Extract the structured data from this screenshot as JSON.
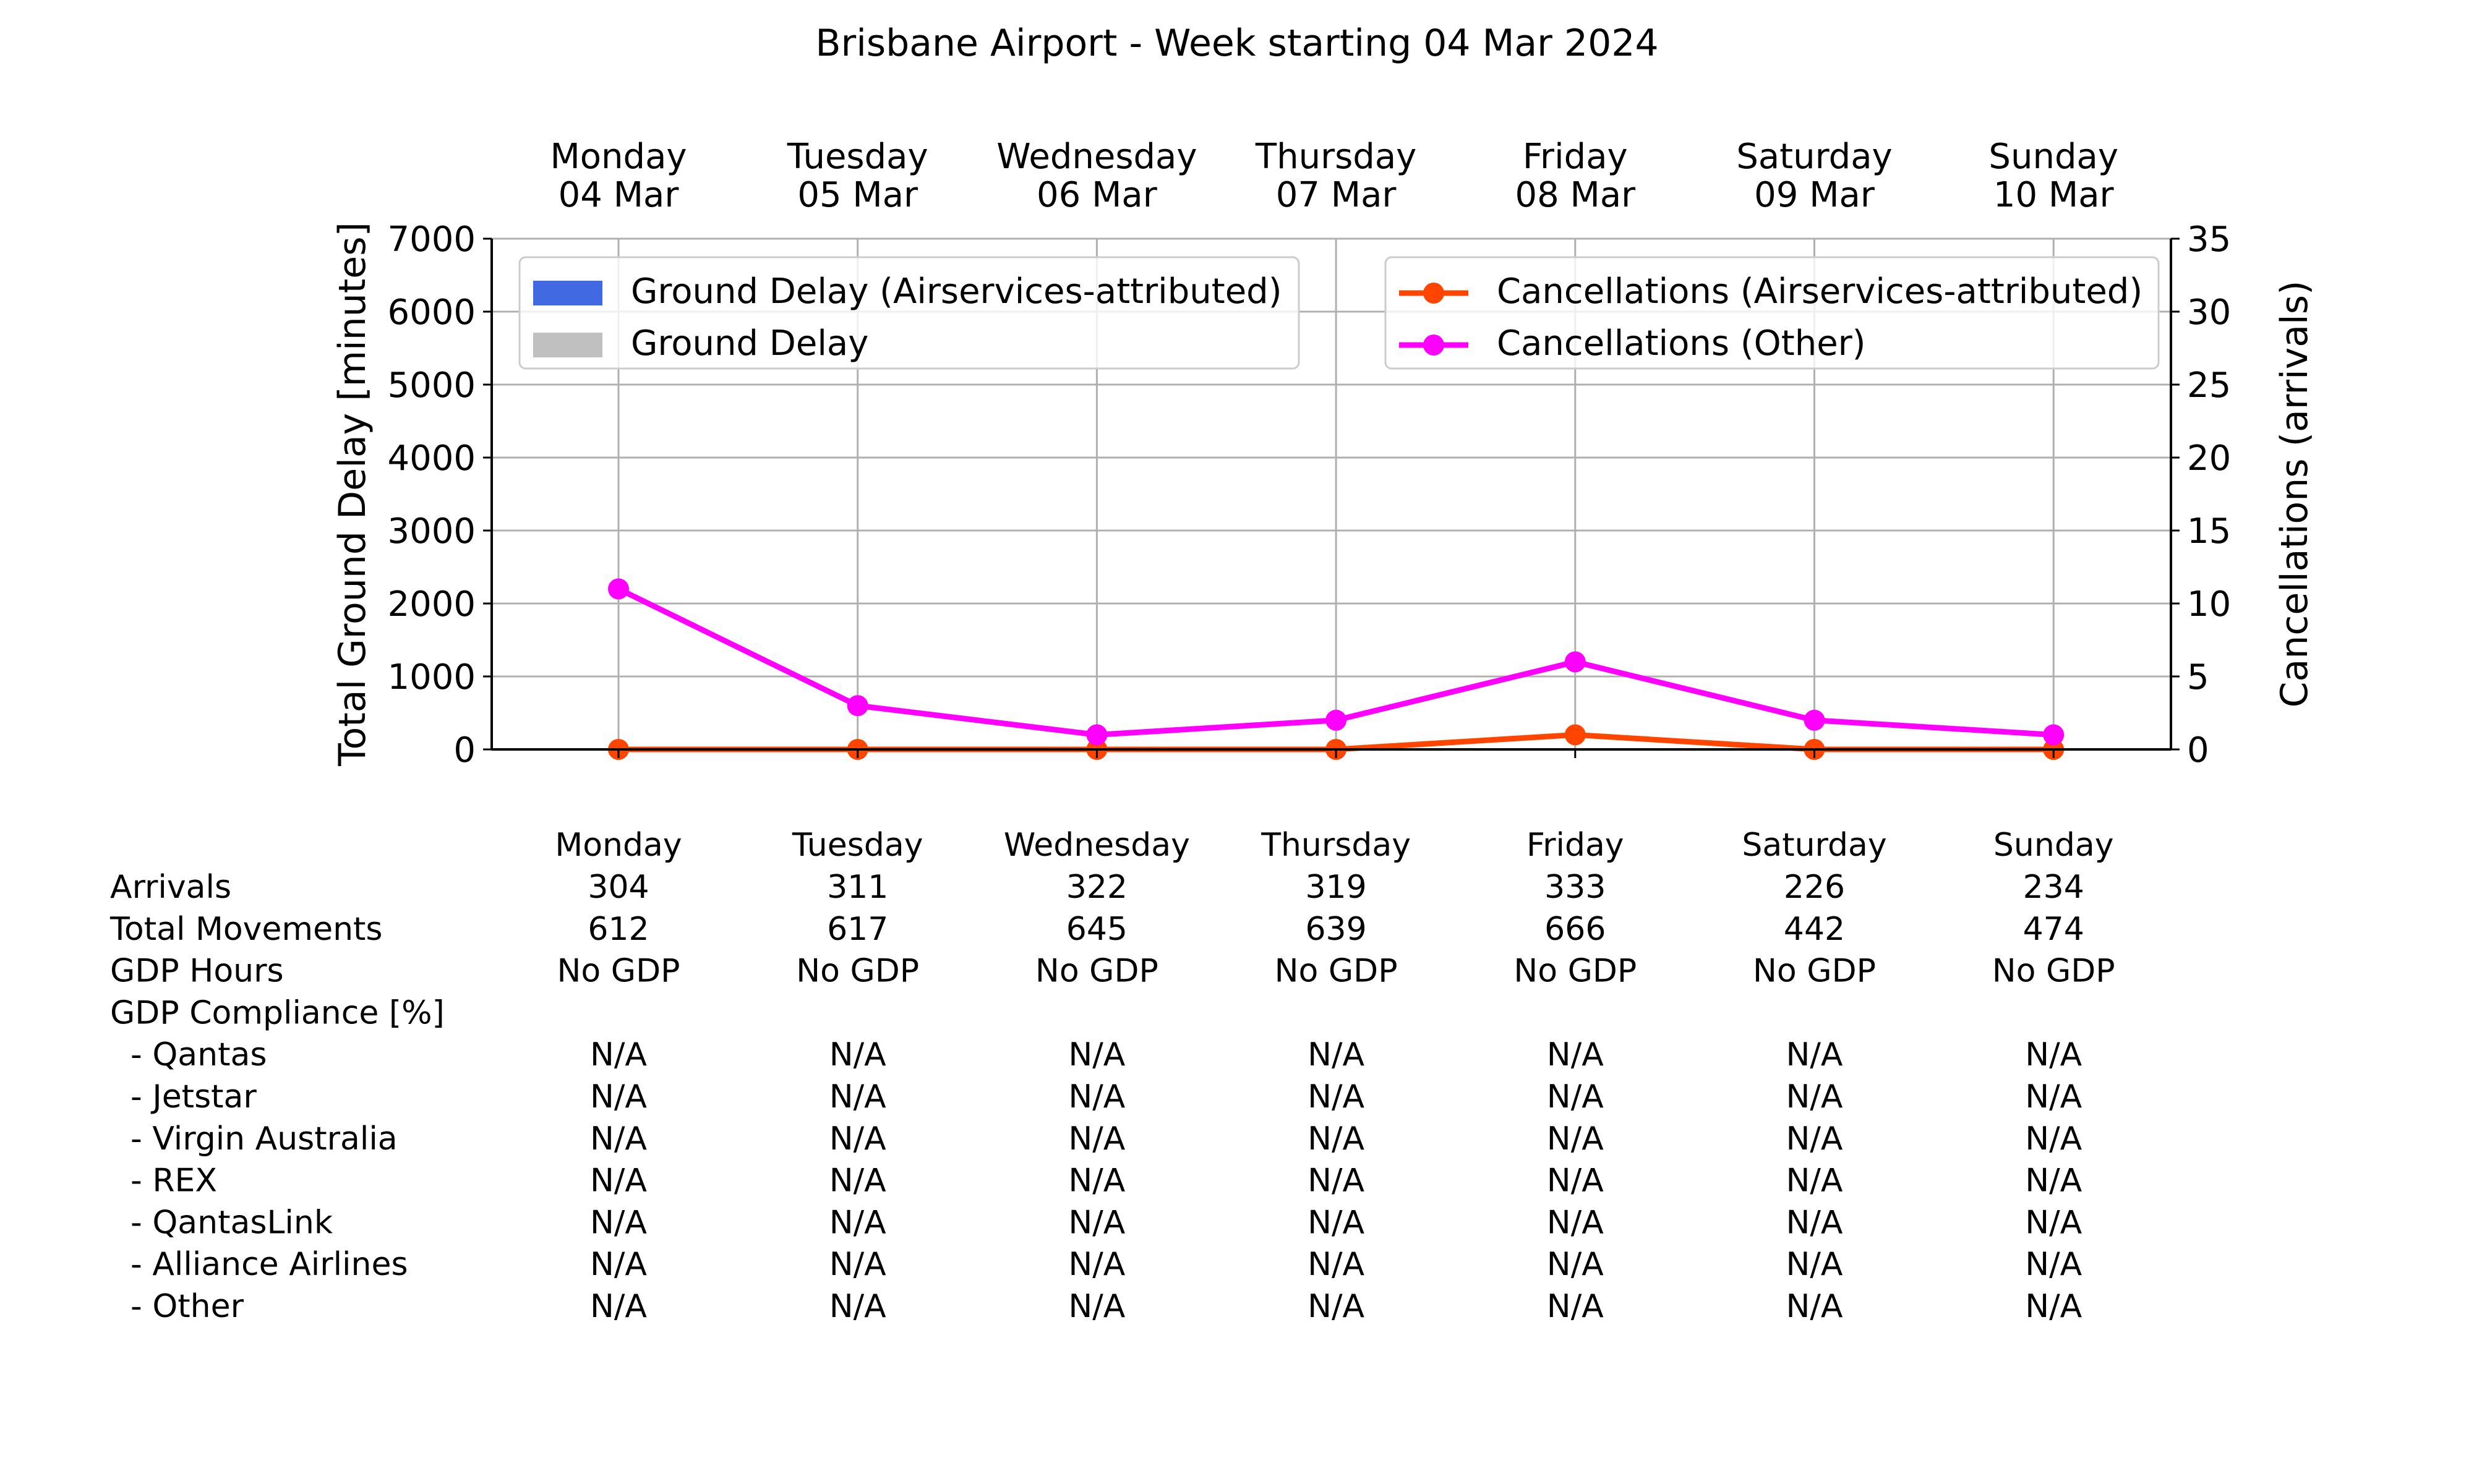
{
  "chart_data": {
    "type": "bar",
    "title": "Brisbane Airport - Week starting 04 Mar 2024",
    "day_names": [
      "Monday",
      "Tuesday",
      "Wednesday",
      "Thursday",
      "Friday",
      "Saturday",
      "Sunday"
    ],
    "day_dates": [
      "04 Mar",
      "05 Mar",
      "06 Mar",
      "07 Mar",
      "08 Mar",
      "09 Mar",
      "10 Mar"
    ],
    "ylabel": "Total Ground Delay [minutes]",
    "y2label": "Cancellations (arrivals)",
    "ylim": [
      0,
      7000
    ],
    "y2lim": [
      0,
      35
    ],
    "yticks": [
      0,
      1000,
      2000,
      3000,
      4000,
      5000,
      6000,
      7000
    ],
    "y2ticks": [
      0,
      5,
      10,
      15,
      20,
      25,
      30,
      35
    ],
    "grid": true,
    "bar_series": [
      {
        "name": "Ground Delay (Airservices-attributed)",
        "color": "#4169e1",
        "values": [
          0,
          0,
          0,
          0,
          0,
          0,
          0
        ]
      },
      {
        "name": "Ground Delay",
        "color": "#c0c0c0",
        "values": [
          0,
          0,
          0,
          0,
          0,
          0,
          0
        ]
      }
    ],
    "line_series": [
      {
        "name": "Cancellations (Airservices-attributed)",
        "color": "#ff4500",
        "values": [
          0,
          0,
          0,
          0,
          1,
          0,
          0
        ]
      },
      {
        "name": "Cancellations (Other)",
        "color": "#ff00ff",
        "values": [
          11,
          3,
          1,
          2,
          6,
          2,
          1
        ]
      }
    ],
    "legend_placement": [
      "top-left",
      "top-right"
    ],
    "table": {
      "header": [
        "Monday",
        "Tuesday",
        "Wednesday",
        "Thursday",
        "Friday",
        "Saturday",
        "Sunday"
      ],
      "rows": [
        {
          "label": "Arrivals",
          "values": [
            "304",
            "311",
            "322",
            "319",
            "333",
            "226",
            "234"
          ]
        },
        {
          "label": "Total Movements",
          "values": [
            "612",
            "617",
            "645",
            "639",
            "666",
            "442",
            "474"
          ]
        },
        {
          "label": "GDP Hours",
          "values": [
            "No GDP",
            "No GDP",
            "No GDP",
            "No GDP",
            "No GDP",
            "No GDP",
            "No GDP"
          ]
        },
        {
          "label": "GDP Compliance [%]",
          "values": [
            "",
            "",
            "",
            "",
            "",
            "",
            ""
          ]
        },
        {
          "label": "  - Qantas",
          "values": [
            "N/A",
            "N/A",
            "N/A",
            "N/A",
            "N/A",
            "N/A",
            "N/A"
          ]
        },
        {
          "label": "  - Jetstar",
          "values": [
            "N/A",
            "N/A",
            "N/A",
            "N/A",
            "N/A",
            "N/A",
            "N/A"
          ]
        },
        {
          "label": "  - Virgin Australia",
          "values": [
            "N/A",
            "N/A",
            "N/A",
            "N/A",
            "N/A",
            "N/A",
            "N/A"
          ]
        },
        {
          "label": "  - REX",
          "values": [
            "N/A",
            "N/A",
            "N/A",
            "N/A",
            "N/A",
            "N/A",
            "N/A"
          ]
        },
        {
          "label": "  - QantasLink",
          "values": [
            "N/A",
            "N/A",
            "N/A",
            "N/A",
            "N/A",
            "N/A",
            "N/A"
          ]
        },
        {
          "label": "  - Alliance Airlines",
          "values": [
            "N/A",
            "N/A",
            "N/A",
            "N/A",
            "N/A",
            "N/A",
            "N/A"
          ]
        },
        {
          "label": "  - Other",
          "values": [
            "N/A",
            "N/A",
            "N/A",
            "N/A",
            "N/A",
            "N/A",
            "N/A"
          ]
        }
      ]
    }
  }
}
